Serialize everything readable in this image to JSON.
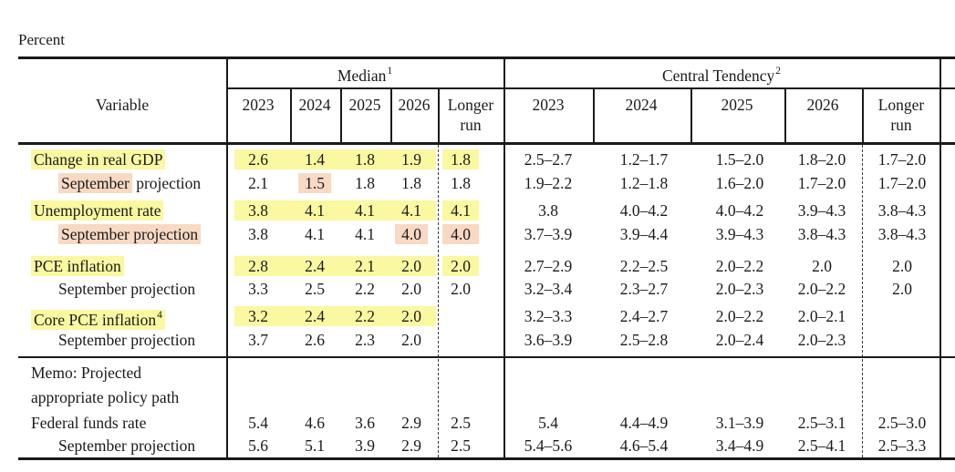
{
  "page": {
    "unit_label": "Percent"
  },
  "colors": {
    "highlight_yellow": "#FAF8A0",
    "highlight_pink": "#F8D9C4"
  },
  "header": {
    "variable": "Variable",
    "groups": [
      {
        "label": "Median",
        "sup": "1",
        "years": [
          "2023",
          "2024",
          "2025",
          "2026"
        ],
        "longer_run": "Longer run"
      },
      {
        "label": "Central Tendency",
        "sup": "2",
        "years": [
          "2023",
          "2024",
          "2025",
          "2026"
        ],
        "longer_run": "Longer run"
      }
    ]
  },
  "rows": [
    {
      "type": "data",
      "indent": false,
      "label_parts": [
        {
          "text": "Change in real GDP",
          "hl": "yellow"
        }
      ],
      "median": [
        "2.6",
        "1.4",
        "1.8",
        "1.9"
      ],
      "median_lr": "1.8",
      "band": true,
      "median_hl": [
        null,
        null,
        null,
        null
      ],
      "median_lr_hl": "yellow",
      "ct": [
        "2.5–2.7",
        "1.2–1.7",
        "1.5–2.0",
        "1.8–2.0"
      ],
      "ct_lr": "1.7–2.0"
    },
    {
      "type": "data",
      "indent": true,
      "label_parts": [
        {
          "text": "September",
          "hl": "pink"
        },
        {
          "text": " projection"
        }
      ],
      "median": [
        "2.1",
        "1.5",
        "1.8",
        "1.8"
      ],
      "median_lr": "1.8",
      "band": false,
      "median_hl": [
        null,
        "pink",
        null,
        null
      ],
      "median_lr_hl": null,
      "ct": [
        "1.9–2.2",
        "1.2–1.8",
        "1.6–2.0",
        "1.7–2.0"
      ],
      "ct_lr": "1.7–2.0"
    },
    {
      "type": "data",
      "indent": false,
      "label_parts": [
        {
          "text": "Unemployment rate",
          "hl": "yellow"
        }
      ],
      "median": [
        "3.8",
        "4.1",
        "4.1",
        "4.1"
      ],
      "median_lr": "4.1",
      "band": true,
      "median_hl": [
        null,
        null,
        null,
        null
      ],
      "median_lr_hl": "yellow",
      "ct": [
        "3.8",
        "4.0–4.2",
        "4.0–4.2",
        "3.9–4.3"
      ],
      "ct_lr": "3.8–4.3"
    },
    {
      "type": "data",
      "indent": true,
      "label_parts": [
        {
          "text": "September projection",
          "hl": "pink"
        }
      ],
      "median": [
        "3.8",
        "4.1",
        "4.1",
        "4.0"
      ],
      "median_lr": "4.0",
      "band": false,
      "median_hl": [
        null,
        null,
        null,
        "pink"
      ],
      "median_lr_hl": "pink",
      "ct": [
        "3.7–3.9",
        "3.9–4.4",
        "3.9–4.3",
        "3.8–4.3"
      ],
      "ct_lr": "3.8–4.3"
    },
    {
      "type": "data",
      "indent": false,
      "label_parts": [
        {
          "text": "PCE inflation",
          "hl": "yellow"
        }
      ],
      "median": [
        "2.8",
        "2.4",
        "2.1",
        "2.0"
      ],
      "median_lr": "2.0",
      "band": true,
      "median_hl": [
        null,
        null,
        null,
        null
      ],
      "median_lr_hl": "yellow",
      "ct": [
        "2.7–2.9",
        "2.2–2.5",
        "2.0–2.2",
        "2.0"
      ],
      "ct_lr": "2.0"
    },
    {
      "type": "data",
      "indent": true,
      "label_parts": [
        {
          "text": "September projection"
        }
      ],
      "median": [
        "3.3",
        "2.5",
        "2.2",
        "2.0"
      ],
      "median_lr": "2.0",
      "band": false,
      "median_hl": [
        null,
        null,
        null,
        null
      ],
      "median_lr_hl": null,
      "ct": [
        "3.2–3.4",
        "2.3–2.7",
        "2.0–2.3",
        "2.0–2.2"
      ],
      "ct_lr": "2.0"
    },
    {
      "type": "data",
      "indent": false,
      "label_parts": [
        {
          "text": "Core PCE inflation",
          "hl": "yellow",
          "sup": "4"
        }
      ],
      "median": [
        "3.2",
        "2.4",
        "2.2",
        "2.0"
      ],
      "median_lr": "",
      "band": true,
      "median_hl": [
        null,
        null,
        null,
        null
      ],
      "median_lr_hl": null,
      "ct": [
        "3.2–3.3",
        "2.4–2.7",
        "2.0–2.2",
        "2.0–2.1"
      ],
      "ct_lr": ""
    },
    {
      "type": "data",
      "indent": true,
      "label_parts": [
        {
          "text": "September projection"
        }
      ],
      "median": [
        "3.7",
        "2.6",
        "2.3",
        "2.0"
      ],
      "median_lr": "",
      "band": false,
      "median_hl": [
        null,
        null,
        null,
        null
      ],
      "median_lr_hl": null,
      "ct": [
        "3.6–3.9",
        "2.5–2.8",
        "2.0–2.4",
        "2.0–2.3"
      ],
      "ct_lr": ""
    },
    {
      "type": "memo",
      "label_lines": [
        "Memo: Projected",
        "appropriate policy path"
      ]
    },
    {
      "type": "data",
      "indent": false,
      "label_parts": [
        {
          "text": "Federal funds rate"
        }
      ],
      "median": [
        "5.4",
        "4.6",
        "3.6",
        "2.9"
      ],
      "median_lr": "2.5",
      "band": false,
      "median_hl": [
        null,
        null,
        null,
        null
      ],
      "median_lr_hl": null,
      "ct": [
        "5.4",
        "4.4–4.9",
        "3.1–3.9",
        "2.5–3.1"
      ],
      "ct_lr": "2.5–3.0"
    },
    {
      "type": "data",
      "indent": true,
      "label_parts": [
        {
          "text": "September projection"
        }
      ],
      "median": [
        "5.6",
        "5.1",
        "3.9",
        "2.9"
      ],
      "median_lr": "2.5",
      "band": false,
      "median_hl": [
        null,
        null,
        null,
        null
      ],
      "median_lr_hl": null,
      "ct": [
        "5.4–5.6",
        "4.6–5.4",
        "3.4–4.9",
        "2.5–4.1"
      ],
      "ct_lr": "2.5–3.3"
    }
  ]
}
